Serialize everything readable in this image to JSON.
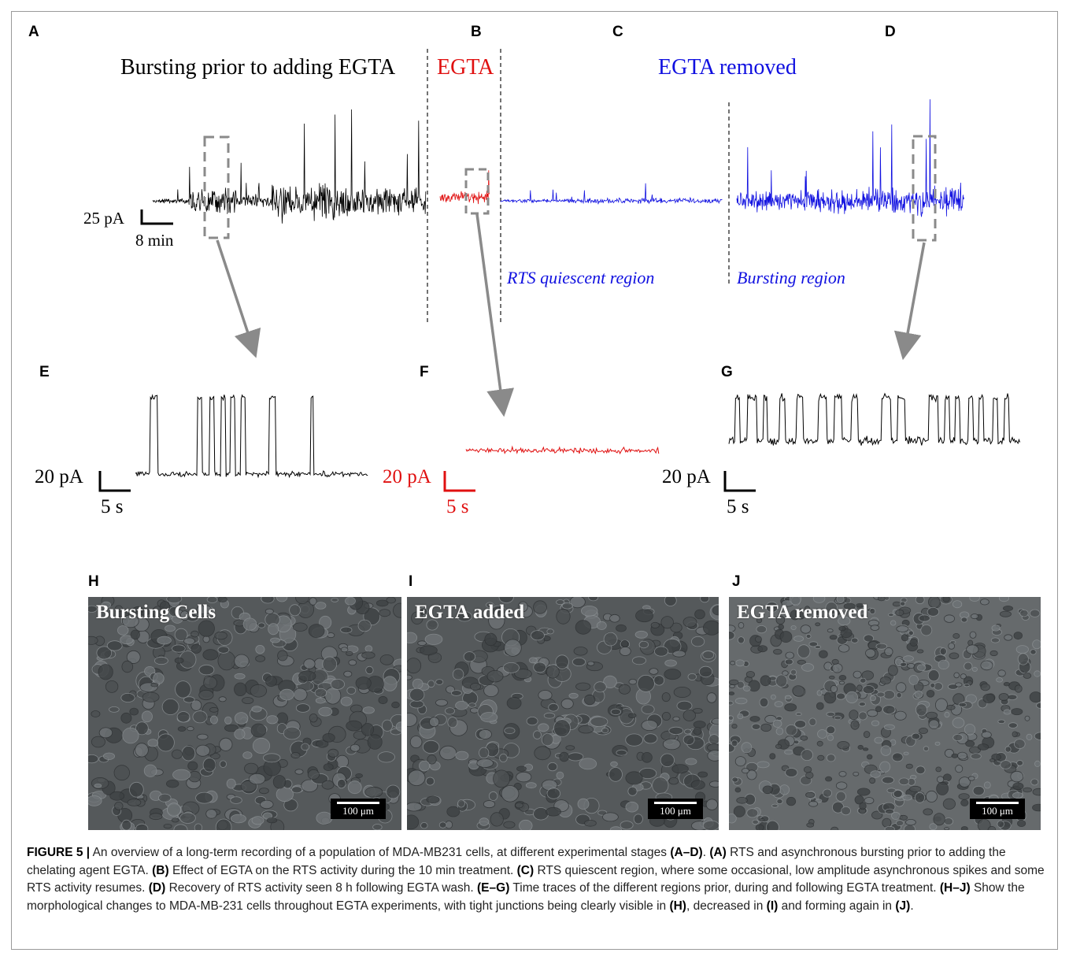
{
  "panels": {
    "A": "A",
    "B": "B",
    "C": "C",
    "D": "D",
    "E": "E",
    "F": "F",
    "G": "G",
    "H": "H",
    "I": "I",
    "J": "J"
  },
  "titles": {
    "bursting_prior": "Bursting prior to adding EGTA",
    "egta": "EGTA",
    "egta_removed": "EGTA removed"
  },
  "regions": {
    "quiescent": "RTS quiescent region",
    "bursting": "Bursting region"
  },
  "scale_bars": {
    "main_current": "25 pA",
    "main_time": "8 min",
    "E_current": "20 pA",
    "E_time": "5 s",
    "F_current": "20 pA",
    "F_time": "5 s",
    "G_current": "20 pA",
    "G_time": "5 s"
  },
  "micrographs": {
    "H_title": "Bursting Cells",
    "I_title": "EGTA added",
    "J_title": "EGTA removed",
    "scale": "100 μm"
  },
  "caption": {
    "label": "FIGURE 5 |",
    "p1": " An overview of a long-term recording of a population of MDA-MB231 cells, at different experimental stages ",
    "r1": "(A–D)",
    "p2": ". ",
    "r2": "(A)",
    "p3": " RTS and asynchronous bursting prior to adding the chelating agent EGTA. ",
    "r3": "(B)",
    "p4": " Effect of EGTA on the RTS activity during the 10 min treatment. ",
    "r4": "(C)",
    "p5": " RTS quiescent region, where some occasional, low amplitude asynchronous spikes and some RTS activity resumes. ",
    "r5": "(D)",
    "p6": " Recovery of RTS activity seen 8 h following EGTA wash. ",
    "r6": "(E–G)",
    "p7": " Time traces of the different regions prior, during and following EGTA treatment. ",
    "r7": "(H–J)",
    "p8": " Show the morphological changes to MDA-MB-231 cells throughout EGTA experiments, with tight junctions being clearly visible in ",
    "r8": "(H)",
    "p9": ", decreased in ",
    "r9": "(I)",
    "p10": " and forming again in ",
    "r10": "(J)",
    "p11": "."
  },
  "colors": {
    "before": "#000000",
    "egta": "#e01010",
    "after": "#1010e0",
    "box": "#8a8a8a"
  }
}
